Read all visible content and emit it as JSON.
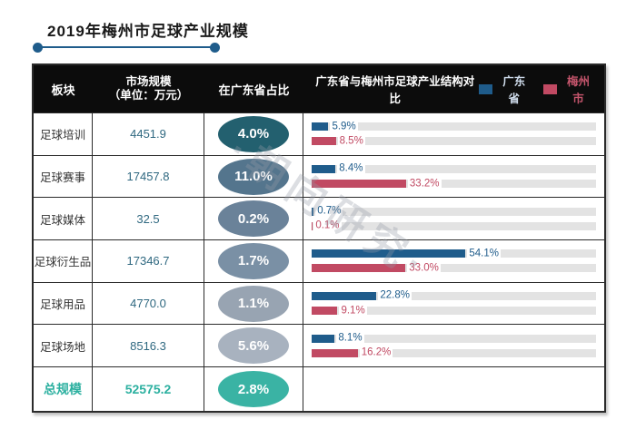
{
  "page": {
    "title": "2019年梅州市足球产业规模"
  },
  "watermark": "·朝向研究·",
  "header": {
    "col_module": "板块",
    "col_scale": "市场规模",
    "col_scale_unit": "（单位：万元）",
    "col_share": "在广东省占比",
    "col_compare": "广东省与梅州市足球产业结构对比",
    "legend": [
      {
        "label": "广东省",
        "swatch_color": "#1f5c8b",
        "label_color": "#cfdcec"
      },
      {
        "label": "梅州市",
        "swatch_color": "#c14a63",
        "label_color": "#c4556c"
      }
    ]
  },
  "colors": {
    "guangdong_bar": "#1f5c8b",
    "meizhou_bar": "#c14a63",
    "bar_track": "#e3e3e3",
    "value_text": "#2f6880",
    "total_text": "#2cb0a0",
    "accent": "#1f5c8b"
  },
  "table": {
    "rows": [
      {
        "module": "足球培训",
        "scale": "4451.9",
        "share": "4.0%",
        "share_bg": "#23606f",
        "gd_pct": 5.9,
        "gd_label": "5.9%",
        "mz_pct": 8.5,
        "mz_label": "8.5%"
      },
      {
        "module": "足球赛事",
        "scale": "17457.8",
        "share": "11.0%",
        "share_bg": "#54758d",
        "gd_pct": 8.4,
        "gd_label": "8.4%",
        "mz_pct": 33.2,
        "mz_label": "33.2%"
      },
      {
        "module": "足球媒体",
        "scale": "32.5",
        "share": "0.2%",
        "share_bg": "#6a8299",
        "gd_pct": 0.7,
        "gd_label": "0.7%",
        "mz_pct": 0.1,
        "mz_label": "0.1%"
      },
      {
        "module": "足球衍生品",
        "scale": "17346.7",
        "share": "1.7%",
        "share_bg": "#7a90a5",
        "gd_pct": 54.1,
        "gd_label": "54.1%",
        "mz_pct": 33.0,
        "mz_label": "33.0%"
      },
      {
        "module": "足球用品",
        "scale": "4770.0",
        "share": "1.1%",
        "share_bg": "#98a4b2",
        "gd_pct": 22.8,
        "gd_label": "22.8%",
        "mz_pct": 9.1,
        "mz_label": "9.1%"
      },
      {
        "module": "足球场地",
        "scale": "8516.3",
        "share": "5.6%",
        "share_bg": "#a8b2bf",
        "gd_pct": 8.1,
        "gd_label": "8.1%",
        "mz_pct": 16.2,
        "mz_label": "16.2%"
      }
    ],
    "total": {
      "module": "总规模",
      "scale": "52575.2",
      "share": "2.8%",
      "share_bg": "#3ab3a4"
    }
  },
  "chart_data": {
    "type": "bar",
    "orientation": "horizontal",
    "title": "2019年梅州市足球产业规模",
    "categories": [
      "足球培训",
      "足球赛事",
      "足球媒体",
      "足球衍生品",
      "足球用品",
      "足球场地"
    ],
    "series": [
      {
        "name": "广东省",
        "color": "#1f5c8b",
        "values": [
          5.9,
          8.4,
          0.7,
          54.1,
          22.8,
          8.1
        ]
      },
      {
        "name": "梅州市",
        "color": "#c14a63",
        "values": [
          8.5,
          33.2,
          0.1,
          33.0,
          9.1,
          16.2
        ]
      }
    ],
    "value_suffix": "%",
    "xlim": [
      0,
      100
    ],
    "grid": false,
    "legend_position": "header-right",
    "table_columns": [
      "板块",
      "市场规模（单位：万元）",
      "在广东省占比",
      "广东省与梅州市足球产业结构对比"
    ],
    "table_rows": [
      [
        "足球培训",
        "4451.9",
        "4.0%"
      ],
      [
        "足球赛事",
        "17457.8",
        "11.0%"
      ],
      [
        "足球媒体",
        "32.5",
        "0.2%"
      ],
      [
        "足球衍生品",
        "17346.7",
        "1.7%"
      ],
      [
        "足球用品",
        "4770.0",
        "1.1%"
      ],
      [
        "足球场地",
        "8516.3",
        "5.6%"
      ],
      [
        "总规模",
        "52575.2",
        "2.8%"
      ]
    ]
  }
}
